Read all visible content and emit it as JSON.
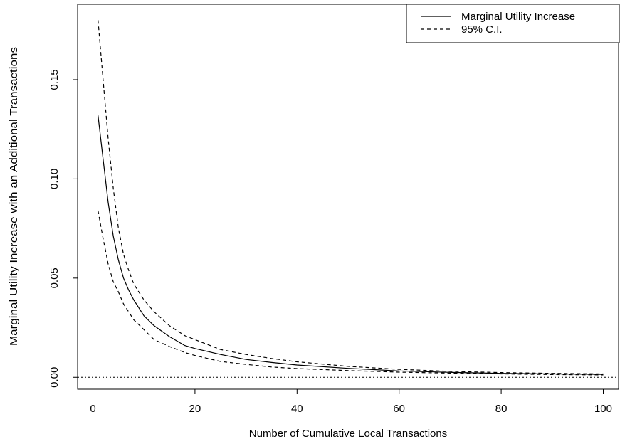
{
  "chart_data": {
    "type": "line",
    "xlabel": "Number of Cumulative Local Transactions",
    "ylabel": "Marginal Utility Increase with an Additional Transactions",
    "xlim": [
      -3,
      103
    ],
    "ylim": [
      -0.006,
      0.188
    ],
    "x_ticks": [
      0,
      20,
      40,
      60,
      80,
      100
    ],
    "x_tick_labels": [
      "0",
      "20",
      "40",
      "60",
      "80",
      "100"
    ],
    "y_ticks": [
      0.0,
      0.05,
      0.1,
      0.15
    ],
    "y_tick_labels": [
      "0.00",
      "0.05",
      "0.10",
      "0.15"
    ],
    "reference_line": {
      "y": 0.0,
      "style": "dotted"
    },
    "legend": {
      "placement": "top-right",
      "entries": [
        {
          "label": "Marginal Utility Increase",
          "style": "solid"
        },
        {
          "label": "95% C.I.",
          "style": "dashed"
        }
      ]
    },
    "series": [
      {
        "name": "Marginal Utility Increase",
        "style": "solid",
        "x": [
          1,
          2,
          3,
          4,
          5,
          6,
          7,
          8,
          10,
          12,
          15,
          18,
          20,
          25,
          30,
          35,
          40,
          50,
          60,
          70,
          80,
          90,
          100
        ],
        "values": [
          0.132,
          0.11,
          0.088,
          0.071,
          0.059,
          0.05,
          0.044,
          0.039,
          0.031,
          0.026,
          0.0205,
          0.016,
          0.0145,
          0.0115,
          0.009,
          0.0075,
          0.0062,
          0.0045,
          0.0032,
          0.0025,
          0.002,
          0.0017,
          0.0015
        ]
      },
      {
        "name": "95% C.I.",
        "style": "dashed",
        "x": [
          1,
          2,
          3,
          4,
          5,
          6,
          7,
          8,
          10,
          12,
          15,
          18,
          20,
          25,
          30,
          35,
          40,
          50,
          60,
          70,
          80,
          90,
          100
        ],
        "values": [
          0.18,
          0.15,
          0.12,
          0.095,
          0.075,
          0.062,
          0.054,
          0.047,
          0.039,
          0.033,
          0.026,
          0.021,
          0.019,
          0.014,
          0.0115,
          0.0095,
          0.0078,
          0.0055,
          0.004,
          0.003,
          0.0024,
          0.002,
          0.0017
        ]
      },
      {
        "name": "95% C.I.",
        "style": "dashed",
        "x": [
          1,
          2,
          3,
          4,
          5,
          6,
          7,
          8,
          10,
          12,
          15,
          18,
          20,
          25,
          30,
          35,
          40,
          50,
          60,
          70,
          80,
          90,
          100
        ],
        "values": [
          0.084,
          0.07,
          0.057,
          0.048,
          0.043,
          0.037,
          0.033,
          0.029,
          0.024,
          0.019,
          0.0155,
          0.0125,
          0.011,
          0.008,
          0.0065,
          0.0052,
          0.0044,
          0.0034,
          0.0026,
          0.0021,
          0.0017,
          0.0014,
          0.0012
        ]
      }
    ]
  }
}
